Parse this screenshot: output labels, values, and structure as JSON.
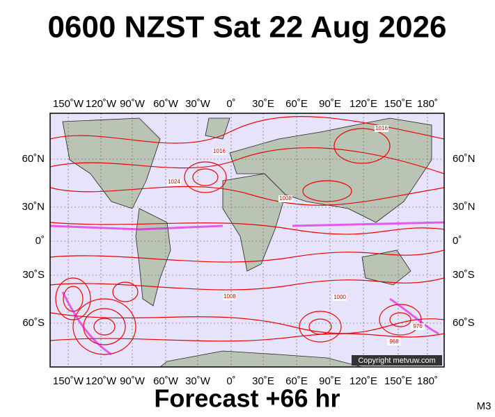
{
  "title": "0600 NZST Sat 22 Aug 2026",
  "longitude_labels": [
    "150˚W",
    "120˚W",
    "90˚W",
    "60˚W",
    "30˚W",
    "0˚",
    "30˚E",
    "60˚E",
    "90˚E",
    "120˚E",
    "150˚E",
    "180˚"
  ],
  "latitude_labels": [
    "60˚N",
    "30˚N",
    "0˚",
    "30˚S",
    "60˚S"
  ],
  "isobar_labels": [
    "1016",
    "1024",
    "1008",
    "1000",
    "976",
    "1016",
    "1008",
    "968"
  ],
  "copyright": "Copyright metvuw.com",
  "footer": "Forecast +66 hr",
  "model": "M3"
}
